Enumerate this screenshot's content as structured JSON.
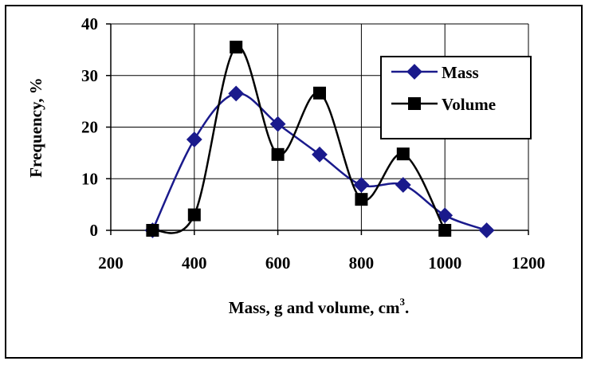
{
  "chart_data": {
    "type": "line",
    "title": "",
    "xlabel": "Mass, g and volume, cm",
    "xlabel_sup": "3",
    "xlabel_suffix": ".",
    "ylabel": "Frequency, %",
    "xlim": [
      200,
      1200
    ],
    "ylim": [
      0,
      40
    ],
    "xticks": [
      "200",
      "400",
      "600",
      "800",
      "1000",
      "1200"
    ],
    "yticks": [
      "0",
      "10",
      "20",
      "30",
      "40"
    ],
    "grid": true,
    "smooth": true,
    "legend_position": "top-right",
    "series": [
      {
        "name": "Mass",
        "color": "#1a1a8c",
        "marker": "diamond",
        "x": [
          300,
          400,
          500,
          600,
          700,
          800,
          900,
          1000,
          1100
        ],
        "y": [
          0,
          17.6,
          26.5,
          20.6,
          14.7,
          8.8,
          8.8,
          2.9,
          0
        ]
      },
      {
        "name": "Volume",
        "color": "#000000",
        "marker": "square",
        "x": [
          300,
          400,
          500,
          600,
          700,
          800,
          900,
          1000
        ],
        "y": [
          0,
          3,
          35.5,
          14.7,
          26.6,
          6,
          14.8,
          0
        ]
      }
    ]
  }
}
